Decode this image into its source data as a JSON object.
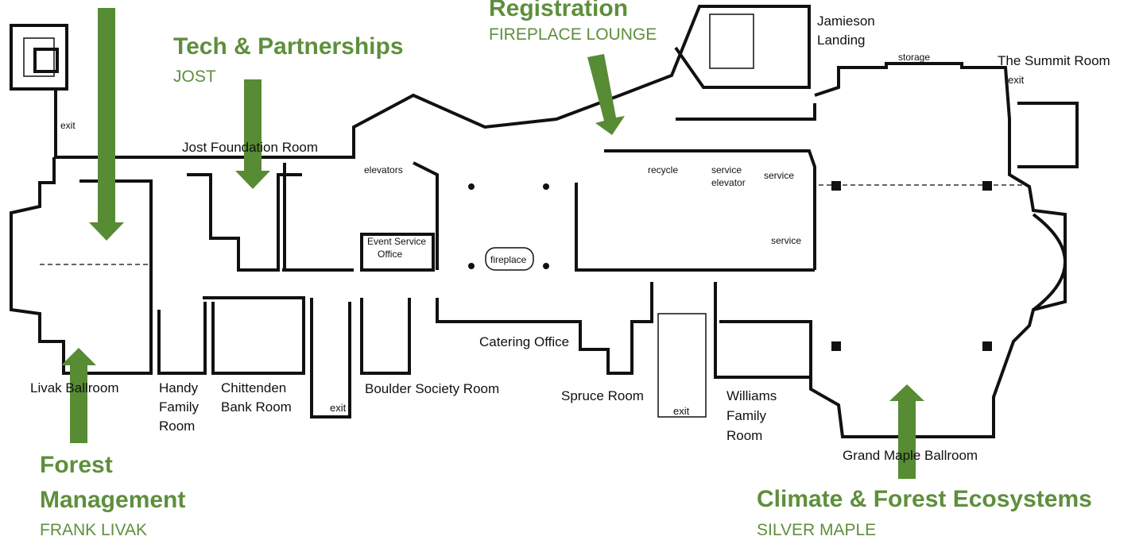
{
  "tracks": [
    {
      "title": [
        "Registration"
      ],
      "room": "FIREPLACE LOUNGE"
    },
    {
      "title": [
        "Tech & Partnerships"
      ],
      "room": "JOST"
    },
    {
      "title": [
        "Forest",
        "Management"
      ],
      "room": "FRANK LIVAK"
    },
    {
      "title": [
        "Climate & Forest Ecosystems"
      ],
      "room": "SILVER MAPLE"
    }
  ],
  "labels": [
    [
      "Jamieson",
      "Landing"
    ],
    [
      "storage"
    ],
    [
      "The Summit Room"
    ],
    [
      "exit"
    ],
    [
      "exit"
    ],
    [
      "Jost Foundation Room"
    ],
    [
      "elevators"
    ],
    [
      "Event Service",
      "Office"
    ],
    [
      "fireplace"
    ],
    [
      "recycle"
    ],
    [
      "service",
      "elevator"
    ],
    [
      "service"
    ],
    [
      "service"
    ],
    [
      "Catering Office"
    ],
    [
      "Livak Ballroom"
    ],
    [
      "Handy",
      "Family",
      "Room"
    ],
    [
      "Chittenden",
      "Bank Room"
    ],
    [
      "exit"
    ],
    [
      "Boulder Society Room"
    ],
    [
      "Spruce Room"
    ],
    [
      "exit"
    ],
    [
      "Williams",
      "Family",
      "Room"
    ],
    [
      "Grand Maple Ballroom"
    ]
  ]
}
